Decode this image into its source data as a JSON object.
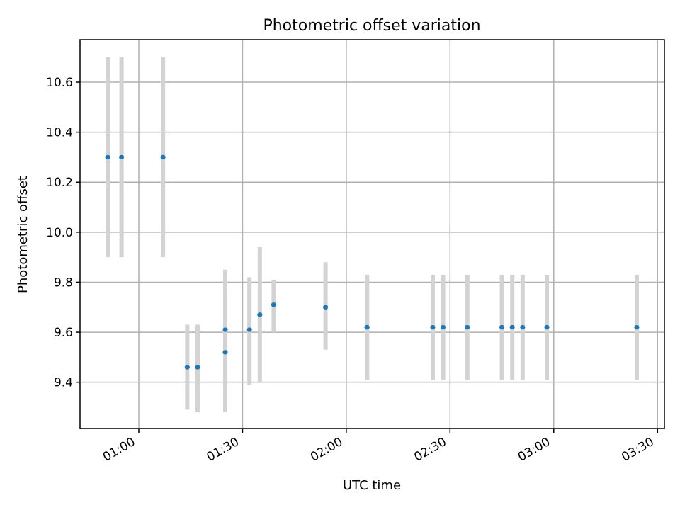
{
  "chart_data": {
    "type": "scatter",
    "title": "Photometric offset variation",
    "xlabel": "UTC time",
    "ylabel": "Photometric offset",
    "x_is_time": true,
    "xlim": [
      "00:43",
      "03:32"
    ],
    "ylim": [
      9.215,
      10.77
    ],
    "xticks": [
      "01:00",
      "01:30",
      "02:00",
      "02:30",
      "03:00",
      "03:30"
    ],
    "yticks": [
      "9.4",
      "9.6",
      "9.8",
      "10.0",
      "10.2",
      "10.4",
      "10.6"
    ],
    "grid": true,
    "marker_color": "#1f77b4",
    "errorbar_color": "#d3d3d3",
    "points": [
      {
        "x": "00:51",
        "y": 10.3,
        "ylow": 9.9,
        "yhigh": 10.7
      },
      {
        "x": "00:55",
        "y": 10.3,
        "ylow": 9.9,
        "yhigh": 10.7
      },
      {
        "x": "01:07",
        "y": 10.3,
        "ylow": 9.9,
        "yhigh": 10.7
      },
      {
        "x": "01:14",
        "y": 9.46,
        "ylow": 9.29,
        "yhigh": 9.63
      },
      {
        "x": "01:17",
        "y": 9.46,
        "ylow": 9.28,
        "yhigh": 9.63
      },
      {
        "x": "01:25",
        "y": 9.61,
        "ylow": 9.38,
        "yhigh": 9.85
      },
      {
        "x": "01:25",
        "y": 9.52,
        "ylow": 9.28,
        "yhigh": 9.76
      },
      {
        "x": "01:32",
        "y": 9.61,
        "ylow": 9.39,
        "yhigh": 9.82
      },
      {
        "x": "01:35",
        "y": 9.67,
        "ylow": 9.4,
        "yhigh": 9.94
      },
      {
        "x": "01:39",
        "y": 9.71,
        "ylow": 9.6,
        "yhigh": 9.81
      },
      {
        "x": "01:54",
        "y": 9.7,
        "ylow": 9.53,
        "yhigh": 9.88
      },
      {
        "x": "02:06",
        "y": 9.62,
        "ylow": 9.41,
        "yhigh": 9.83
      },
      {
        "x": "02:06",
        "y": 9.62,
        "ylow": 9.41,
        "yhigh": 9.83
      },
      {
        "x": "02:25",
        "y": 9.62,
        "ylow": 9.41,
        "yhigh": 9.83
      },
      {
        "x": "02:28",
        "y": 9.62,
        "ylow": 9.41,
        "yhigh": 9.83
      },
      {
        "x": "02:35",
        "y": 9.62,
        "ylow": 9.41,
        "yhigh": 9.83
      },
      {
        "x": "02:45",
        "y": 9.62,
        "ylow": 9.41,
        "yhigh": 9.83
      },
      {
        "x": "02:48",
        "y": 9.62,
        "ylow": 9.41,
        "yhigh": 9.83
      },
      {
        "x": "02:51",
        "y": 9.62,
        "ylow": 9.41,
        "yhigh": 9.83
      },
      {
        "x": "02:58",
        "y": 9.62,
        "ylow": 9.41,
        "yhigh": 9.83
      },
      {
        "x": "03:24",
        "y": 9.62,
        "ylow": 9.41,
        "yhigh": 9.83
      }
    ]
  }
}
